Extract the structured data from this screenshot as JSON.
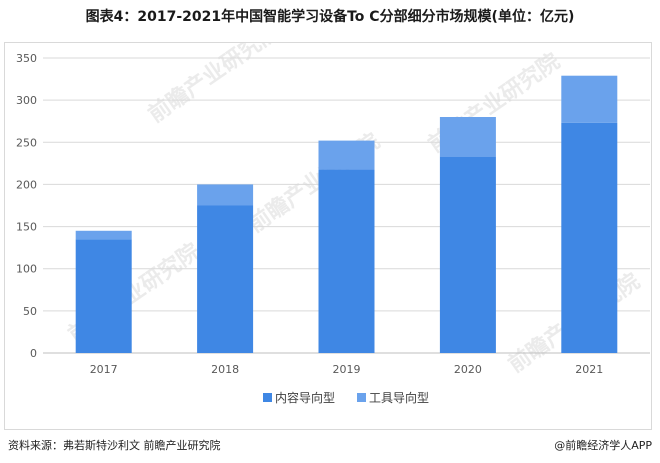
{
  "title": "图表4：2017-2021年中国智能学习设备To C分部细分市场规模(单位：亿元)",
  "source": "资料来源：弗若斯特沙利文 前瞻产业研究院",
  "credit": "@前瞻经济学人APP",
  "watermark": "前瞻产业研究院",
  "colors": {
    "series_1": "#3f87e4",
    "series_2": "#6aa2ec",
    "grid": "#d9d9d9",
    "axis": "#bfbfbf"
  },
  "chart_data": {
    "type": "bar",
    "stacked": true,
    "categories": [
      "2017",
      "2018",
      "2019",
      "2020",
      "2021"
    ],
    "series": [
      {
        "name": "内容导向型",
        "values": [
          135,
          175,
          218,
          233,
          273
        ]
      },
      {
        "name": "工具导向型",
        "values": [
          10,
          25,
          34,
          47,
          56
        ]
      }
    ],
    "ylim": [
      0,
      350
    ],
    "yticks": [
      0,
      50,
      100,
      150,
      200,
      250,
      300,
      350
    ],
    "grid": true,
    "legend_position": "bottom"
  }
}
